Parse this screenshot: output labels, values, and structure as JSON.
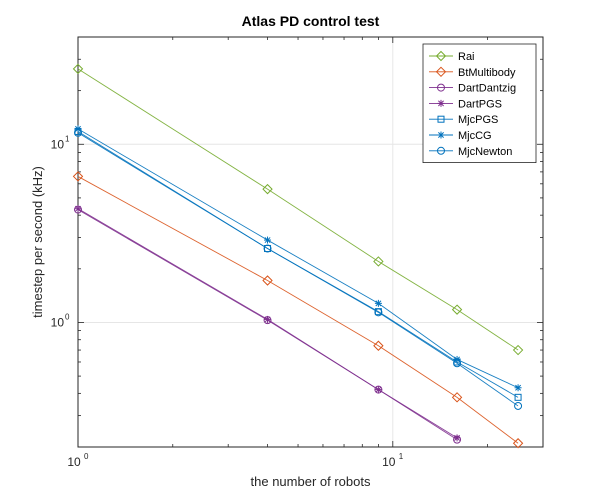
{
  "chart_data": {
    "type": "line",
    "title": "Atlas PD control test",
    "xlabel": "the number of robots",
    "ylabel": "timestep per second (kHz)",
    "xscale": "log",
    "yscale": "log",
    "xlim": [
      1,
      30
    ],
    "ylim": [
      0.2,
      40
    ],
    "grid": true,
    "legend_position": "top-right",
    "xticks": [
      {
        "base": "10",
        "exp": "0",
        "value": 1
      },
      {
        "base": "10",
        "exp": "1",
        "value": 10
      }
    ],
    "yticks": [
      {
        "base": "10",
        "exp": "0",
        "value": 1
      },
      {
        "base": "10",
        "exp": "1",
        "value": 10
      }
    ],
    "x": [
      1,
      4,
      9,
      16,
      25
    ],
    "series": [
      {
        "name": "Rai",
        "color": "#77ac30",
        "marker": "diamond",
        "values": [
          26.5,
          5.6,
          2.2,
          1.18,
          0.7
        ]
      },
      {
        "name": "BtMultibody",
        "color": "#d95319",
        "marker": "diamond",
        "values": [
          6.6,
          1.72,
          0.74,
          0.38,
          0.21
        ]
      },
      {
        "name": "DartDantzig",
        "color": "#7e2f8e",
        "marker": "circle",
        "values": [
          4.3,
          1.03,
          0.42,
          0.22,
          null
        ]
      },
      {
        "name": "DartPGS",
        "color": "#7e2f8e",
        "marker": "star",
        "values": [
          4.35,
          1.04,
          0.42,
          0.225,
          null
        ]
      },
      {
        "name": "MjcPGS",
        "color": "#0072bd",
        "marker": "square",
        "values": [
          11.8,
          2.6,
          1.15,
          0.6,
          0.38
        ]
      },
      {
        "name": "MjcCG",
        "color": "#0072bd",
        "marker": "star",
        "values": [
          12.2,
          2.9,
          1.28,
          0.62,
          0.43
        ]
      },
      {
        "name": "MjcNewton",
        "color": "#0072bd",
        "marker": "circle",
        "values": [
          11.6,
          2.6,
          1.14,
          0.59,
          0.34
        ]
      }
    ]
  }
}
